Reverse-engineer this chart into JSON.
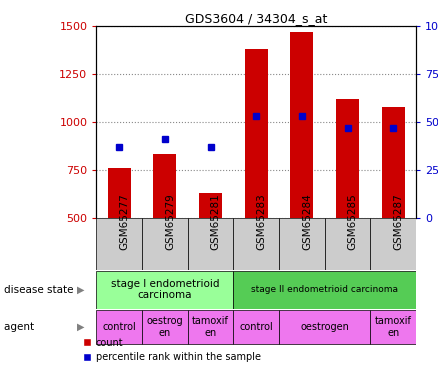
{
  "title": "GDS3604 / 34304_s_at",
  "samples": [
    "GSM65277",
    "GSM65279",
    "GSM65281",
    "GSM65283",
    "GSM65284",
    "GSM65285",
    "GSM65287"
  ],
  "counts": [
    760,
    830,
    630,
    1380,
    1470,
    1120,
    1080
  ],
  "percentiles": [
    37,
    41,
    37,
    53,
    53,
    47,
    47
  ],
  "ylim_left": [
    500,
    1500
  ],
  "ylim_right": [
    0,
    100
  ],
  "yticks_left": [
    500,
    750,
    1000,
    1250,
    1500
  ],
  "yticks_right": [
    0,
    25,
    50,
    75,
    100
  ],
  "bar_color": "#cc0000",
  "dot_color": "#0000cc",
  "stage1_color": "#99ff99",
  "stage2_color": "#55cc55",
  "agent_color": "#ee77ee",
  "sample_bg_color": "#cccccc",
  "background_color": "#ffffff",
  "grid_color": "#888888",
  "tick_color_left": "#cc0000",
  "tick_color_right": "#0000cc",
  "disease_state_label": "disease state",
  "agent_label": "agent",
  "stage1_text": "stage I endometrioid\ncarcinoma",
  "stage2_text": "stage II endometrioid carcinoma",
  "agent_groups": [
    {
      "label": "control",
      "start": 0,
      "end": 1
    },
    {
      "label": "oestrog\nen",
      "start": 1,
      "end": 2
    },
    {
      "label": "tamoxif\nen",
      "start": 2,
      "end": 3
    },
    {
      "label": "control",
      "start": 3,
      "end": 4
    },
    {
      "label": "oestrogen",
      "start": 4,
      "end": 6
    },
    {
      "label": "tamoxif\nen",
      "start": 6,
      "end": 7
    }
  ],
  "legend_count": "count",
  "legend_pct": "percentile rank within the sample"
}
